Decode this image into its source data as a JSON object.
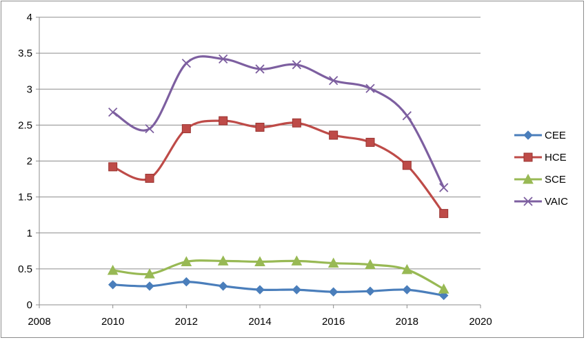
{
  "chart_data": {
    "type": "line",
    "title": "",
    "xlabel": "",
    "ylabel": "",
    "xlim": [
      2008,
      2020
    ],
    "ylim": [
      0,
      4
    ],
    "xticks": [
      "2008",
      "2010",
      "2012",
      "2014",
      "2016",
      "2018",
      "2020"
    ],
    "yticks": [
      "0",
      "0.5",
      "1",
      "1.5",
      "2",
      "2.5",
      "3",
      "3.5",
      "4"
    ],
    "grid": "horizontal",
    "legend": "right",
    "x": [
      2010,
      2011,
      2012,
      2013,
      2014,
      2015,
      2016,
      2017,
      2018,
      2019
    ],
    "series": [
      {
        "name": "CEE",
        "color": "#4a7ebb",
        "marker": "diamond",
        "values": [
          0.28,
          0.26,
          0.32,
          0.26,
          0.21,
          0.21,
          0.18,
          0.19,
          0.21,
          0.13
        ]
      },
      {
        "name": "HCE",
        "color": "#be4b48",
        "marker": "square",
        "values": [
          1.92,
          1.76,
          2.45,
          2.56,
          2.47,
          2.53,
          2.36,
          2.26,
          1.94,
          1.27
        ]
      },
      {
        "name": "SCE",
        "color": "#98b954",
        "marker": "triangle",
        "values": [
          0.48,
          0.43,
          0.6,
          0.61,
          0.6,
          0.61,
          0.58,
          0.56,
          0.49,
          0.22
        ]
      },
      {
        "name": "VAIC",
        "color": "#7d5fa0",
        "marker": "x",
        "values": [
          2.68,
          2.45,
          3.36,
          3.42,
          3.28,
          3.34,
          3.12,
          3.01,
          2.63,
          1.63
        ]
      }
    ]
  }
}
